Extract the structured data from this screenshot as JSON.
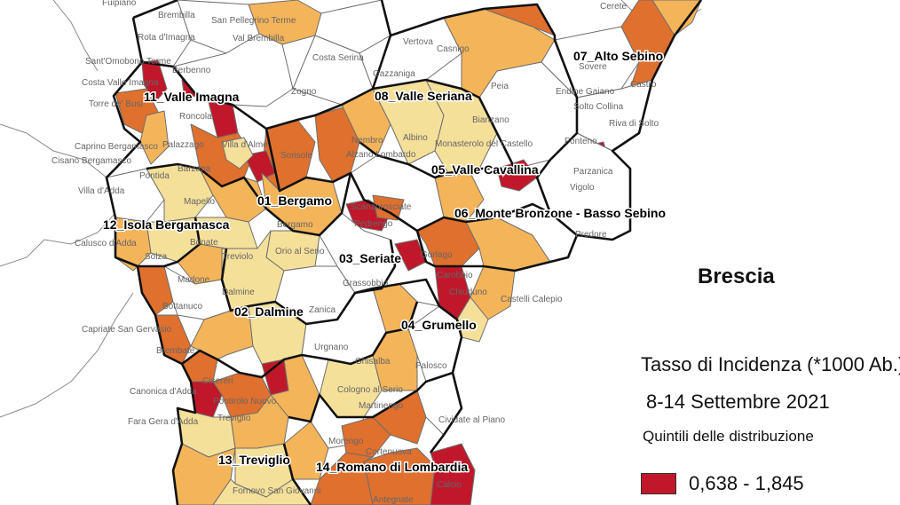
{
  "colors": {
    "q1": "#ffffff",
    "q2": "#f5e09a",
    "q3": "#f4b45a",
    "q4": "#e0702e",
    "q5": "#c0182a"
  },
  "province_label": "Brescia",
  "legend": {
    "title": "Tasso di Incidenza (*1000 Ab.)",
    "period": "8-14 Settembre 2021",
    "subtitle": "Quintili delle distribuzione",
    "classes": [
      {
        "range": "0,638 - 1,845",
        "color": "#c0182a"
      }
    ]
  },
  "districts": [
    "01_Bergamo",
    "02_Dalmine",
    "03_Seriate",
    "04_Grumello",
    "05_Valle Cavallina",
    "06_Monte Bronzone - Basso Sebino",
    "07_Alto Sebino",
    "08_Valle Seriana",
    "11_Valle Imagna",
    "12_Isola Bergamasca",
    "13_Treviglio",
    "14_Romano di Lombardia"
  ],
  "towns": [
    "Fuipiano",
    "Brembilla",
    "Rota d'Imagna",
    "San Pellegrino Terme",
    "Val Brembilla",
    "Sant'Omobono Terme",
    "Berbenno",
    "Costa Valle Imagna",
    "Zogno",
    "Costa Serina",
    "Vertova",
    "Casnigo",
    "Gazzaniga",
    "Cerete",
    "Endine Gaiano",
    "Sovere",
    "Castro",
    "Solto Collina",
    "Riva di Solto",
    "Torre de' Busi",
    "Roncola",
    "Villa d'Almè",
    "Caprino Bergamasco",
    "Cisano Bergamasco",
    "Palazzago",
    "Sorisole",
    "Nembro",
    "Albino",
    "Alzano Lombardo",
    "Monasterolo del Castello",
    "Bianzano",
    "Peia",
    "Fonteno",
    "Parzanica",
    "Vigolo",
    "Pontida",
    "Barzana",
    "Villa d'Adda",
    "Mapello",
    "Scanzorosciate",
    "Pedrengo",
    "Bergamo",
    "Predore",
    "Calusco d'Adda",
    "Solza",
    "Bonate",
    "Orio al Serio",
    "Treviolo",
    "Gorlago",
    "Carobbio",
    "Chiuduno",
    "Castelli Calepio",
    "Madone",
    "Dalmine",
    "Grassobbio",
    "Zanica",
    "Bottanuco",
    "Capriate San Gervasio",
    "Brembate",
    "Urgnano",
    "Ghisalba",
    "Palosco",
    "Canonica d'Adda",
    "Cisereri",
    "Pontirolo Nuovo",
    "Cologno al Serio",
    "Martinengo",
    "Fara Gera d'Adda",
    "Cividate al Piano",
    "Treviglio",
    "Morengo",
    "Calcio",
    "Fornovo San Giovanni",
    "Cortenuova",
    "Antegnate"
  ]
}
